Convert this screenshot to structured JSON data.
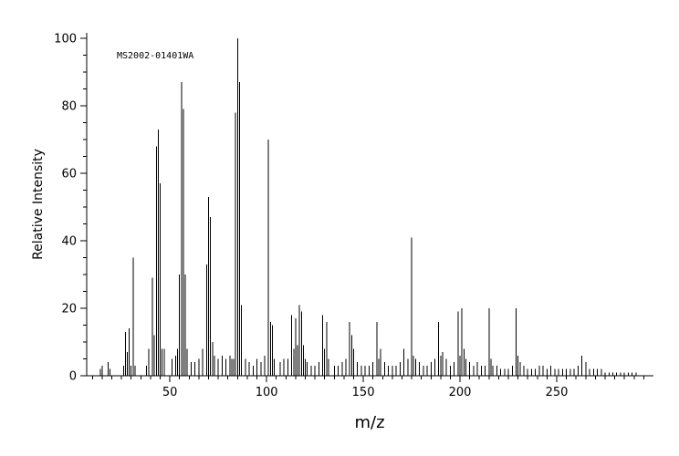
{
  "page": {
    "background": "#ffffff"
  },
  "chart_data": {
    "type": "bar",
    "subtype": "mass-spectrum",
    "title": "",
    "annotation": "MS2002-01401WA",
    "xlabel": "m/z",
    "ylabel": "Relative Intensity",
    "xlim": [
      7,
      300
    ],
    "ylim": [
      0,
      100
    ],
    "x_major_ticks": [
      50,
      100,
      150,
      200,
      250
    ],
    "x_minor_tick_step": 5,
    "x_minor_tick_start": 10,
    "x_minor_tick_end": 295,
    "y_major_ticks": [
      0,
      20,
      40,
      60,
      80,
      100
    ],
    "y_minor_tick_step": 5,
    "grid": false,
    "legend": false,
    "axis_color": "#000000",
    "peak_color": "#000000",
    "peaks": [
      [
        14,
        2
      ],
      [
        15,
        3
      ],
      [
        18,
        4
      ],
      [
        19,
        2
      ],
      [
        26,
        3
      ],
      [
        27,
        13
      ],
      [
        28,
        7
      ],
      [
        29,
        14
      ],
      [
        30,
        3
      ],
      [
        31,
        35
      ],
      [
        32,
        3
      ],
      [
        38,
        3
      ],
      [
        39,
        8
      ],
      [
        41,
        29
      ],
      [
        42,
        12
      ],
      [
        43,
        68
      ],
      [
        44,
        73
      ],
      [
        45,
        57
      ],
      [
        46,
        8
      ],
      [
        47,
        8
      ],
      [
        51,
        5
      ],
      [
        53,
        6
      ],
      [
        54,
        8
      ],
      [
        55,
        30
      ],
      [
        56,
        87
      ],
      [
        57,
        79
      ],
      [
        58,
        30
      ],
      [
        59,
        8
      ],
      [
        61,
        4
      ],
      [
        63,
        4
      ],
      [
        65,
        5
      ],
      [
        67,
        8
      ],
      [
        69,
        33
      ],
      [
        70,
        53
      ],
      [
        71,
        47
      ],
      [
        72,
        10
      ],
      [
        73,
        6
      ],
      [
        75,
        5
      ],
      [
        77,
        6
      ],
      [
        79,
        5
      ],
      [
        81,
        6
      ],
      [
        82,
        5
      ],
      [
        83,
        5
      ],
      [
        84,
        78
      ],
      [
        85,
        100
      ],
      [
        86,
        87
      ],
      [
        87,
        21
      ],
      [
        89,
        5
      ],
      [
        91,
        4
      ],
      [
        93,
        3
      ],
      [
        95,
        5
      ],
      [
        97,
        4
      ],
      [
        99,
        6
      ],
      [
        101,
        70
      ],
      [
        102,
        16
      ],
      [
        103,
        15
      ],
      [
        104,
        5
      ],
      [
        107,
        4
      ],
      [
        109,
        5
      ],
      [
        111,
        5
      ],
      [
        113,
        18
      ],
      [
        114,
        8
      ],
      [
        115,
        17
      ],
      [
        116,
        9
      ],
      [
        117,
        21
      ],
      [
        118,
        19
      ],
      [
        119,
        9
      ],
      [
        120,
        5
      ],
      [
        121,
        4
      ],
      [
        123,
        3
      ],
      [
        125,
        3
      ],
      [
        127,
        4
      ],
      [
        129,
        18
      ],
      [
        130,
        8
      ],
      [
        131,
        16
      ],
      [
        132,
        5
      ],
      [
        135,
        3
      ],
      [
        137,
        3
      ],
      [
        139,
        4
      ],
      [
        141,
        5
      ],
      [
        143,
        16
      ],
      [
        144,
        12
      ],
      [
        145,
        8
      ],
      [
        147,
        4
      ],
      [
        149,
        3
      ],
      [
        151,
        3
      ],
      [
        153,
        3
      ],
      [
        155,
        4
      ],
      [
        157,
        16
      ],
      [
        158,
        5
      ],
      [
        159,
        8
      ],
      [
        161,
        4
      ],
      [
        163,
        3
      ],
      [
        165,
        3
      ],
      [
        167,
        3
      ],
      [
        169,
        4
      ],
      [
        171,
        8
      ],
      [
        173,
        5
      ],
      [
        175,
        41
      ],
      [
        176,
        6
      ],
      [
        177,
        5
      ],
      [
        179,
        4
      ],
      [
        181,
        3
      ],
      [
        183,
        3
      ],
      [
        185,
        4
      ],
      [
        187,
        5
      ],
      [
        189,
        16
      ],
      [
        190,
        6
      ],
      [
        191,
        7
      ],
      [
        193,
        5
      ],
      [
        195,
        3
      ],
      [
        197,
        4
      ],
      [
        199,
        19
      ],
      [
        200,
        6
      ],
      [
        201,
        20
      ],
      [
        202,
        8
      ],
      [
        203,
        5
      ],
      [
        205,
        4
      ],
      [
        207,
        3
      ],
      [
        209,
        4
      ],
      [
        211,
        3
      ],
      [
        213,
        3
      ],
      [
        215,
        20
      ],
      [
        216,
        5
      ],
      [
        217,
        3
      ],
      [
        219,
        3
      ],
      [
        221,
        2
      ],
      [
        223,
        2
      ],
      [
        225,
        2
      ],
      [
        227,
        3
      ],
      [
        229,
        20
      ],
      [
        230,
        6
      ],
      [
        231,
        4
      ],
      [
        233,
        3
      ],
      [
        235,
        2
      ],
      [
        237,
        2
      ],
      [
        239,
        2
      ],
      [
        241,
        3
      ],
      [
        243,
        3
      ],
      [
        245,
        2
      ],
      [
        247,
        3
      ],
      [
        249,
        2
      ],
      [
        251,
        2
      ],
      [
        253,
        2
      ],
      [
        255,
        2
      ],
      [
        257,
        2
      ],
      [
        259,
        2
      ],
      [
        261,
        3
      ],
      [
        263,
        6
      ],
      [
        265,
        4
      ],
      [
        267,
        2
      ],
      [
        269,
        2
      ],
      [
        271,
        2
      ],
      [
        273,
        2
      ],
      [
        275,
        1
      ],
      [
        277,
        1
      ],
      [
        279,
        1
      ],
      [
        281,
        1
      ],
      [
        283,
        1
      ],
      [
        285,
        1
      ],
      [
        287,
        1
      ],
      [
        289,
        1
      ],
      [
        291,
        1
      ]
    ]
  }
}
